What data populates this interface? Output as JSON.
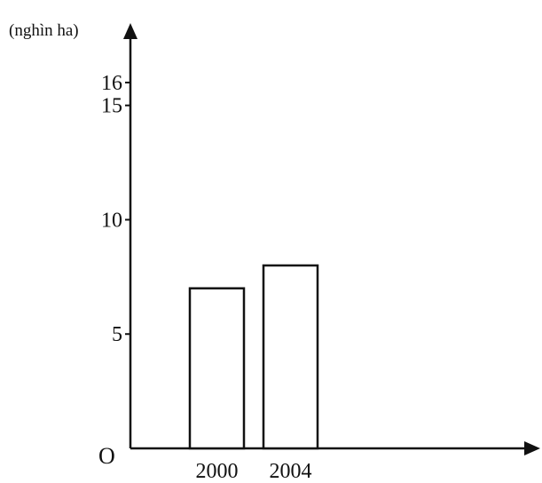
{
  "chart_data": {
    "type": "bar",
    "ylabel": "(nghìn ha)",
    "origin_label": "O",
    "categories": [
      "2000",
      "2004"
    ],
    "values": [
      7,
      8
    ],
    "yticks": [
      5,
      10,
      15,
      16
    ],
    "ylim": [
      0,
      18.6
    ],
    "grid": false,
    "legend": "none"
  }
}
